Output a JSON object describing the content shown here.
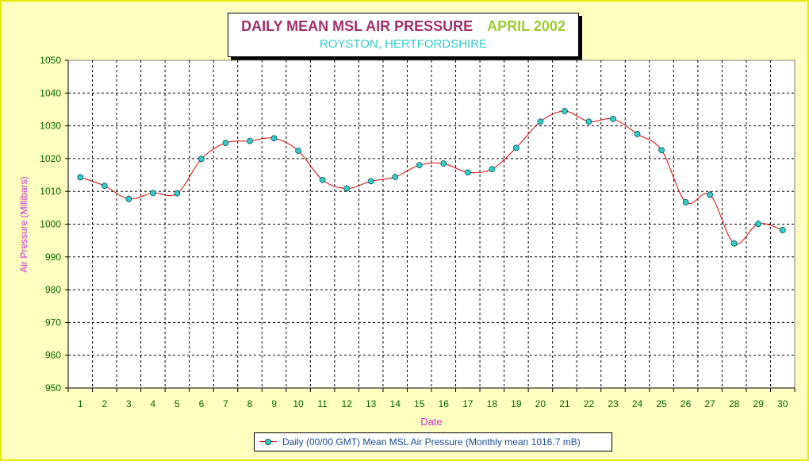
{
  "header": {
    "title": "DAILY MEAN MSL AIR PRESSURE",
    "period": "APRIL 2002",
    "subtitle": "ROYSTON, HERTFORDSHIRE"
  },
  "colors": {
    "title": "#a0306a",
    "period": "#9acd32",
    "subtitle": "#33cccc",
    "series_line": "#e00000",
    "series_marker": "#33cccc",
    "axis_text": "#006600",
    "axis_label": "#cc33cc",
    "background": "#ffffc0"
  },
  "chart_data": {
    "type": "line",
    "xlabel": "Date",
    "ylabel": "Air Pressure (Millibars)",
    "ylim": [
      950,
      1050
    ],
    "y_ticks": [
      950,
      960,
      970,
      980,
      990,
      1000,
      1010,
      1020,
      1030,
      1040,
      1050
    ],
    "grid": true,
    "legend_position": "bottom",
    "x": [
      1,
      2,
      3,
      4,
      5,
      6,
      7,
      8,
      9,
      10,
      11,
      12,
      13,
      14,
      15,
      16,
      17,
      18,
      19,
      20,
      21,
      22,
      23,
      24,
      25,
      26,
      27,
      28,
      29,
      30
    ],
    "series": [
      {
        "name": "Daily (00/00 GMT) Mean MSL Air Pressure (Monthly mean 1016.7 mB)",
        "values": [
          1014.3,
          1011.7,
          1007.7,
          1009.5,
          1009.4,
          1019.9,
          1024.8,
          1025.4,
          1026.2,
          1022.4,
          1013.5,
          1010.9,
          1013.1,
          1014.4,
          1018.0,
          1018.5,
          1015.8,
          1016.8,
          1023.3,
          1031.3,
          1034.5,
          1031.3,
          1032.1,
          1027.5,
          1022.6,
          1006.7,
          1009.0,
          994.1,
          1000.1,
          998.2
        ]
      }
    ]
  }
}
